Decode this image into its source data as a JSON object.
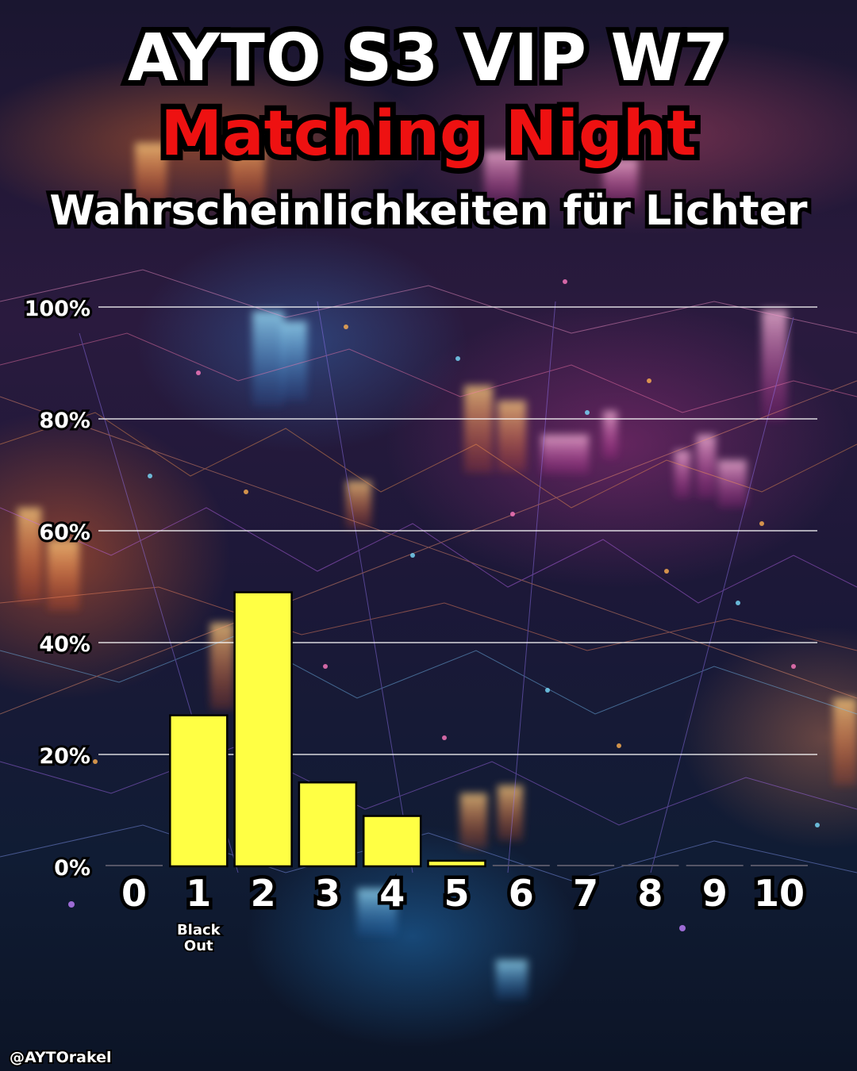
{
  "header": {
    "title": "AYTO S3 VIP W7",
    "subtitle": "Matching Night",
    "caption": "Wahrscheinlichkeiten für Lichter"
  },
  "chart_data": {
    "type": "bar",
    "title": "Wahrscheinlichkeiten für Lichter",
    "categories": [
      "0",
      "1",
      "2",
      "3",
      "4",
      "5",
      "6",
      "7",
      "8",
      "9",
      "10"
    ],
    "values": [
      0,
      27,
      49,
      15,
      9,
      1,
      0,
      0,
      0,
      0,
      0
    ],
    "unit": "%",
    "ylim": [
      0,
      100
    ],
    "yticks": [
      0,
      20,
      40,
      60,
      80,
      100
    ],
    "ytick_labels": [
      "0%",
      "20%",
      "40%",
      "60%",
      "80%",
      "100%"
    ],
    "grid": true,
    "highlight_category": "3",
    "annotations": [
      {
        "category": "1",
        "text": "Black Out"
      }
    ]
  },
  "colors": {
    "bar": "#ffff44",
    "highlight_label": "#f2e600",
    "grid": "#ffffff"
  },
  "footer": {
    "handle": "@AYTOrakel"
  }
}
